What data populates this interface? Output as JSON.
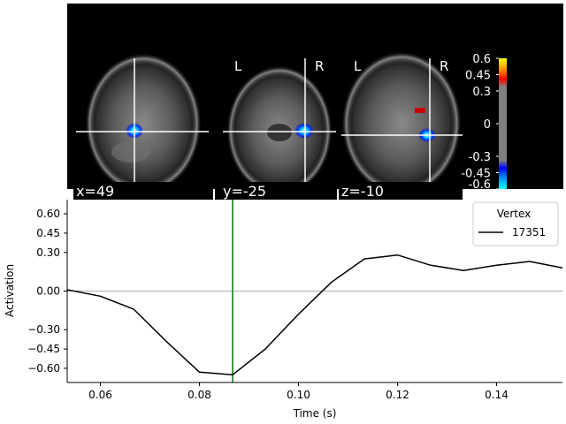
{
  "brain_panel": {
    "views": [
      {
        "label": "x=49",
        "orientation_left": "",
        "orientation_right": ""
      },
      {
        "label": "y=-25",
        "orientation_left": "L",
        "orientation_right": "R"
      },
      {
        "label": "z=-10",
        "orientation_left": "L",
        "orientation_right": "R"
      }
    ],
    "colorbar": {
      "tick_labels": [
        "0.6",
        "0.45",
        "0.3",
        "0",
        "-0.3",
        "-0.45",
        "-0.6"
      ],
      "colors": {
        "positive_max": "#ffff00",
        "positive_mid": "#ff0000",
        "neutral": "#808080",
        "negative_mid": "#0000ff",
        "negative_max": "#00ffff"
      }
    }
  },
  "chart_data": {
    "type": "line",
    "xlabel": "Time (s)",
    "ylabel": "Activation",
    "xlim": [
      0.0533,
      0.1533
    ],
    "ylim": [
      -0.71,
      0.71
    ],
    "x_ticks": [
      0.06,
      0.08,
      0.1,
      0.12,
      0.14
    ],
    "x_tick_labels": [
      "0.06",
      "0.08",
      "0.10",
      "0.12",
      "0.14"
    ],
    "y_ticks": [
      0.6,
      0.45,
      0.3,
      0.0,
      -0.3,
      -0.45,
      -0.6
    ],
    "y_tick_labels": [
      "0.60",
      "0.45",
      "0.30",
      "0.00",
      "−0.30",
      "−0.45",
      "−0.60"
    ],
    "zero_line": true,
    "vertical_marker": {
      "x": 0.0867,
      "color": "#007700"
    },
    "legend": {
      "title": "Vertex",
      "placement": "top-right"
    },
    "series": [
      {
        "name": "17351",
        "color": "#000000",
        "x": [
          0.0533,
          0.06,
          0.0667,
          0.0733,
          0.08,
          0.0867,
          0.0933,
          0.1,
          0.1067,
          0.1133,
          0.12,
          0.1267,
          0.1333,
          0.14,
          0.1467,
          0.1533
        ],
        "y": [
          0.01,
          -0.04,
          -0.14,
          -0.39,
          -0.63,
          -0.65,
          -0.45,
          -0.18,
          0.07,
          0.25,
          0.28,
          0.2,
          0.16,
          0.2,
          0.23,
          0.18
        ]
      }
    ]
  }
}
